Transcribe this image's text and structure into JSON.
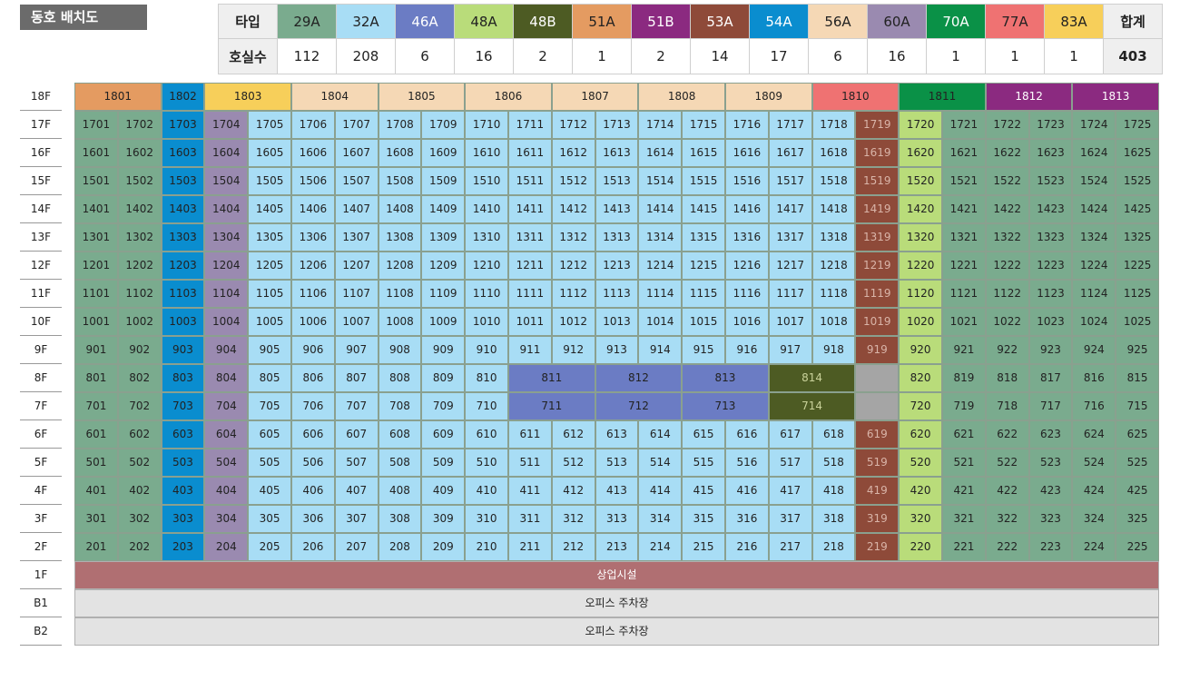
{
  "title": "동호 배치도",
  "legend": {
    "type_label": "타입",
    "count_label": "호실수",
    "types": [
      {
        "name": "29A",
        "count": "112",
        "color": "#7aab8e"
      },
      {
        "name": "32A",
        "count": "208",
        "color": "#a8ddf5"
      },
      {
        "name": "46A",
        "count": "6",
        "color": "#6b7cc4"
      },
      {
        "name": "48A",
        "count": "16",
        "color": "#b9dc7a"
      },
      {
        "name": "48B",
        "count": "2",
        "color": "#4d5b23"
      },
      {
        "name": "51A",
        "count": "1",
        "color": "#e49b61"
      },
      {
        "name": "51B",
        "count": "2",
        "color": "#8b2a80"
      },
      {
        "name": "53A",
        "count": "14",
        "color": "#8e4a39"
      },
      {
        "name": "54A",
        "count": "17",
        "color": "#0a8dcf"
      },
      {
        "name": "56A",
        "count": "6",
        "color": "#f5d8b5"
      },
      {
        "name": "60A",
        "count": "16",
        "color": "#9a8ab0"
      },
      {
        "name": "70A",
        "count": "1",
        "color": "#0a9147"
      },
      {
        "name": "77A",
        "count": "1",
        "color": "#ef7272"
      },
      {
        "name": "83A",
        "count": "1",
        "color": "#f7cf5a"
      }
    ],
    "total_label": "합계",
    "total": "403"
  },
  "colors": {
    "29A": "#7aab8e",
    "32A": "#a8ddf5",
    "46A": "#6b7cc4",
    "48A": "#b9dc7a",
    "48B": "#4d5b23",
    "51A": "#e49b61",
    "51B": "#8b2a80",
    "53A": "#8e4a39",
    "54A": "#0a8dcf",
    "56A": "#f5d8b5",
    "60A": "#9a8ab0",
    "70A": "#0a9147",
    "77A": "#ef7272",
    "83A": "#f7cf5a",
    "blank": "#a5a5a5",
    "commercial": "#b06f72",
    "parking": "#e3e3e3"
  },
  "floor_labels": [
    "18F",
    "17F",
    "16F",
    "15F",
    "14F",
    "13F",
    "12F",
    "11F",
    "10F",
    "9F",
    "8F",
    "7F",
    "6F",
    "5F",
    "4F",
    "3F",
    "2F",
    "1F",
    "B1",
    "B2"
  ],
  "floor18": [
    {
      "unit": "1801",
      "type": "51A",
      "span": 2
    },
    {
      "unit": "1802",
      "type": "54A",
      "span": 1
    },
    {
      "unit": "1803",
      "type": "83A",
      "span": 2
    },
    {
      "unit": "1804",
      "type": "56A",
      "span": 2
    },
    {
      "unit": "1805",
      "type": "56A",
      "span": 2
    },
    {
      "unit": "1806",
      "type": "56A",
      "span": 2
    },
    {
      "unit": "1807",
      "type": "56A",
      "span": 2
    },
    {
      "unit": "1808",
      "type": "56A",
      "span": 2
    },
    {
      "unit": "1809",
      "type": "56A",
      "span": 2
    },
    {
      "unit": "1810",
      "type": "77A",
      "span": 2
    },
    {
      "unit": "1811",
      "type": "70A",
      "span": 2
    },
    {
      "unit": "1812",
      "type": "51B",
      "span": 2
    },
    {
      "unit": "1813",
      "type": "51B",
      "span": 2
    }
  ],
  "typical_columns": [
    "29A",
    "29A",
    "54A",
    "60A",
    "32A",
    "32A",
    "32A",
    "32A",
    "32A",
    "32A",
    "32A",
    "32A",
    "32A",
    "32A",
    "32A",
    "32A",
    "32A",
    "32A",
    "53A",
    "48A",
    "29A",
    "29A",
    "29A",
    "29A",
    "29A"
  ],
  "floor8": [
    {
      "unit": "801",
      "type": "29A",
      "span": 1
    },
    {
      "unit": "802",
      "type": "29A",
      "span": 1
    },
    {
      "unit": "803",
      "type": "54A",
      "span": 1
    },
    {
      "unit": "804",
      "type": "60A",
      "span": 1
    },
    {
      "unit": "805",
      "type": "32A",
      "span": 1
    },
    {
      "unit": "806",
      "type": "32A",
      "span": 1
    },
    {
      "unit": "807",
      "type": "32A",
      "span": 1
    },
    {
      "unit": "808",
      "type": "32A",
      "span": 1
    },
    {
      "unit": "809",
      "type": "32A",
      "span": 1
    },
    {
      "unit": "810",
      "type": "32A",
      "span": 1
    },
    {
      "unit": "811",
      "type": "46A",
      "span": 2
    },
    {
      "unit": "812",
      "type": "46A",
      "span": 2
    },
    {
      "unit": "813",
      "type": "46A",
      "span": 2
    },
    {
      "unit": "814",
      "type": "48B",
      "span": 2
    },
    {
      "unit": "",
      "type": "blank",
      "span": 1
    },
    {
      "unit": "820",
      "type": "48A",
      "span": 1
    },
    {
      "unit": "819",
      "type": "29A",
      "span": 1
    },
    {
      "unit": "818",
      "type": "29A",
      "span": 1
    },
    {
      "unit": "817",
      "type": "29A",
      "span": 1
    },
    {
      "unit": "816",
      "type": "29A",
      "span": 1
    },
    {
      "unit": "815",
      "type": "29A",
      "span": 1
    }
  ],
  "floor7": [
    {
      "unit": "701",
      "type": "29A",
      "span": 1
    },
    {
      "unit": "702",
      "type": "29A",
      "span": 1
    },
    {
      "unit": "703",
      "type": "54A",
      "span": 1
    },
    {
      "unit": "704",
      "type": "60A",
      "span": 1
    },
    {
      "unit": "705",
      "type": "32A",
      "span": 1
    },
    {
      "unit": "706",
      "type": "32A",
      "span": 1
    },
    {
      "unit": "707",
      "type": "32A",
      "span": 1
    },
    {
      "unit": "708",
      "type": "32A",
      "span": 1
    },
    {
      "unit": "709",
      "type": "32A",
      "span": 1
    },
    {
      "unit": "710",
      "type": "32A",
      "span": 1
    },
    {
      "unit": "711",
      "type": "46A",
      "span": 2
    },
    {
      "unit": "712",
      "type": "46A",
      "span": 2
    },
    {
      "unit": "713",
      "type": "46A",
      "span": 2
    },
    {
      "unit": "714",
      "type": "48B",
      "span": 2
    },
    {
      "unit": "",
      "type": "blank",
      "span": 1
    },
    {
      "unit": "720",
      "type": "48A",
      "span": 1
    },
    {
      "unit": "719",
      "type": "29A",
      "span": 1
    },
    {
      "unit": "718",
      "type": "29A",
      "span": 1
    },
    {
      "unit": "717",
      "type": "29A",
      "span": 1
    },
    {
      "unit": "716",
      "type": "29A",
      "span": 1
    },
    {
      "unit": "715",
      "type": "29A",
      "span": 1
    }
  ],
  "floor1_label": "상업시설",
  "b1_label": "오피스 주차장",
  "b2_label": "오피스 주차장"
}
